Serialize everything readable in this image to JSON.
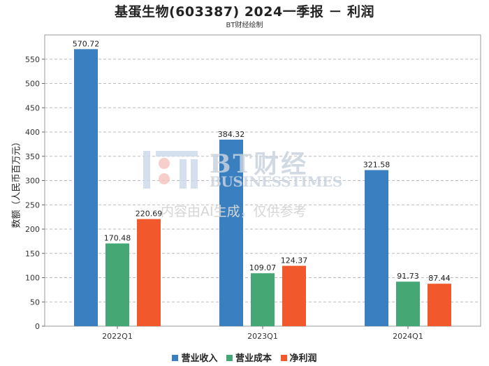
{
  "chart_data": {
    "type": "bar",
    "title": "基蛋生物(603387) 2024一季报 － 利润",
    "subtitle": "BT财经绘制",
    "ylabel": "数额（人民币百万元）",
    "xlabel": "",
    "categories": [
      "2022Q1",
      "2023Q1",
      "2024Q1"
    ],
    "ylim": [
      0,
      600
    ],
    "yticks": [
      0,
      50,
      100,
      150,
      200,
      250,
      300,
      350,
      400,
      450,
      500,
      550
    ],
    "grid": true,
    "legend_position": "bottom",
    "series": [
      {
        "name": "营业收入",
        "color": "#3a80c1",
        "values": [
          570.72,
          384.32,
          321.58
        ]
      },
      {
        "name": "营业成本",
        "color": "#45a874",
        "values": [
          170.48,
          109.07,
          91.73
        ]
      },
      {
        "name": "净利润",
        "color": "#f1582b",
        "values": [
          220.69,
          124.37,
          87.44
        ]
      }
    ]
  },
  "watermark": {
    "logo_text": "BT财经",
    "brand_text": "BUSINESSTIMES",
    "disclaimer": "内容由AI生成，仅供参考"
  }
}
